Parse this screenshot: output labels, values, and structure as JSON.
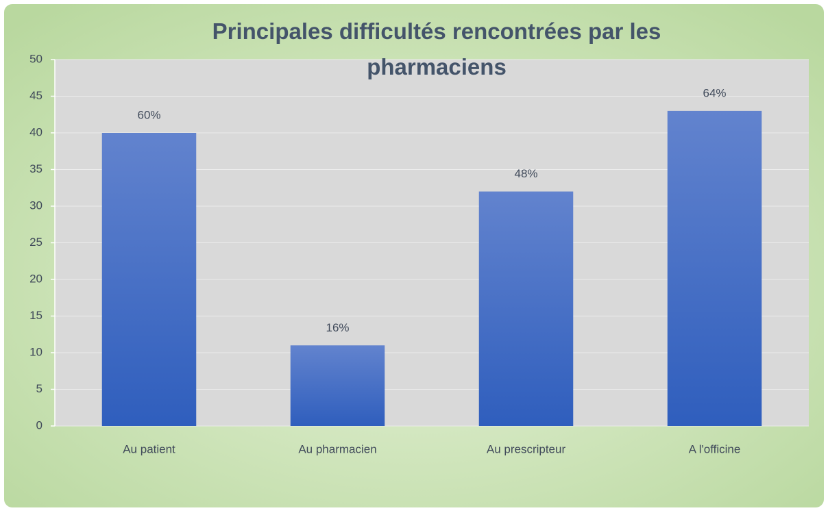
{
  "chart_data": {
    "type": "bar",
    "title": "Principales difficultés rencontrées par les pharmaciens",
    "categories": [
      "Au patient",
      "Au pharmacien",
      "Au prescripteur",
      "A l'officine"
    ],
    "values": [
      40,
      11,
      32,
      43
    ],
    "value_labels": [
      "60%",
      "16%",
      "48%",
      "64%"
    ],
    "color": "#4472c4",
    "ylim": [
      0,
      50
    ],
    "yticks": [
      0,
      5,
      10,
      15,
      20,
      25,
      30,
      35,
      40,
      45,
      50
    ],
    "grid": true
  }
}
